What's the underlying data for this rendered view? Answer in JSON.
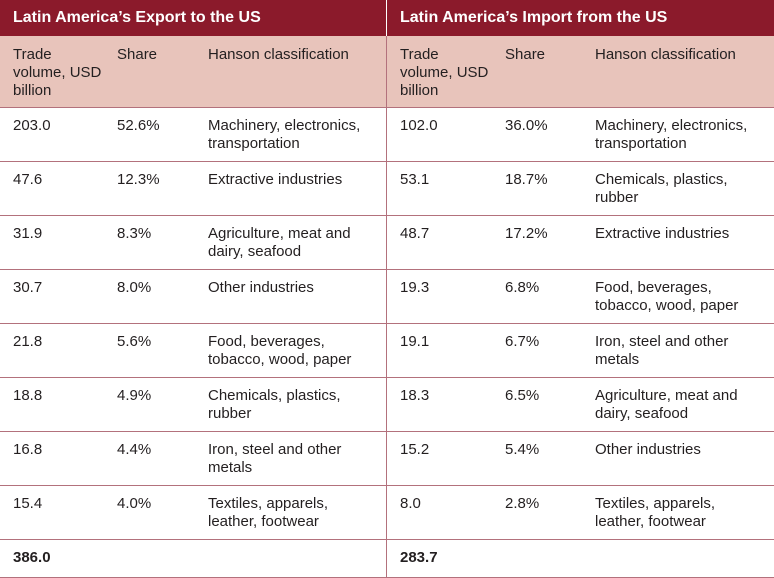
{
  "left": {
    "title": "Latin America’s Export to the US",
    "headers": [
      "Trade volume, USD billion",
      "Share",
      "Hanson classification"
    ],
    "rows": [
      [
        "203.0",
        "52.6%",
        "Machinery, electronics, transportation"
      ],
      [
        "47.6",
        "12.3%",
        "Extractive industries"
      ],
      [
        "31.9",
        "8.3%",
        "Agriculture, meat and dairy, seafood"
      ],
      [
        "30.7",
        "8.0%",
        "Other industries"
      ],
      [
        "21.8",
        "5.6%",
        "Food, beverages, tobacco, wood, paper"
      ],
      [
        "18.8",
        "4.9%",
        "Chemicals, plastics, rubber"
      ],
      [
        "16.8",
        "4.4%",
        "Iron, steel and other metals"
      ],
      [
        "15.4",
        "4.0%",
        "Textiles, apparels, leather, footwear"
      ]
    ],
    "total": "386.0"
  },
  "right": {
    "title": "Latin America’s Import from the US",
    "headers": [
      "Trade volume, USD billion",
      "Share",
      "Hanson classification"
    ],
    "rows": [
      [
        "102.0",
        "36.0%",
        "Machinery, electronics, transportation"
      ],
      [
        "53.1",
        "18.7%",
        "Chemicals, plastics, rubber"
      ],
      [
        "48.7",
        "17.2%",
        "Extractive industries"
      ],
      [
        "19.3",
        "6.8%",
        "Food, beverages, tobacco, wood, paper"
      ],
      [
        "19.1",
        "6.7%",
        "Iron, steel and other metals"
      ],
      [
        "18.3",
        "6.5%",
        "Agriculture, meat and dairy, seafood"
      ],
      [
        "15.2",
        "5.4%",
        "Other industries"
      ],
      [
        "8.0",
        "2.8%",
        "Textiles, apparels, leather, footwear"
      ]
    ],
    "total": "283.7"
  },
  "colors": {
    "title_band": "#8b1a2b",
    "header_band": "#e8c4bb",
    "grid_lines": "#b3717c"
  }
}
